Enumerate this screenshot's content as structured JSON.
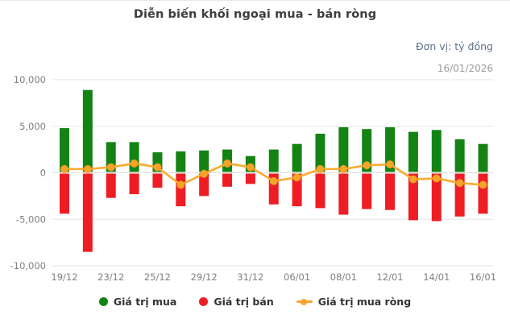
{
  "header": {
    "title": "Diễn biến khối ngoại mua - bán ròng",
    "unit_label": "Đơn vị: tỷ đồng",
    "date_label": "16/01/2026"
  },
  "legend": [
    {
      "label": "Giá trị mua",
      "color": "#148314",
      "marker": "circle"
    },
    {
      "label": "Giá trị bán",
      "color": "#ee1d23",
      "marker": "circle"
    },
    {
      "label": "Giá trị mua ròng",
      "color": "#f7a42b",
      "marker": "line-dot"
    }
  ],
  "colors": {
    "buy": "#148314",
    "sell": "#ee1d23",
    "net_line": "#f9ab2e",
    "net_dot_fill": "#f7a42b",
    "net_dot_stroke": "#ee9a1d",
    "grid": "#e6e6e6",
    "zero_line": "#dcdcdc",
    "axis_text": "#808080"
  },
  "chart_data": {
    "type": "bar",
    "title": "Diễn biến khối ngoại mua - bán ròng",
    "unit": "tỷ đồng",
    "as_of_date": "16/01/2026",
    "x_tick_labels": [
      "19/12",
      "23/12",
      "25/12",
      "29/12",
      "31/12",
      "06/01",
      "08/01",
      "12/01",
      "14/01",
      "16/01"
    ],
    "tick_every": 2,
    "n_points": 19,
    "series": [
      {
        "name": "Giá trị mua",
        "type": "bar",
        "values": [
          4800,
          8900,
          3300,
          3300,
          2200,
          2300,
          2400,
          2500,
          1800,
          2500,
          3100,
          4200,
          4900,
          4700,
          4900,
          4400,
          4600,
          3600,
          3100
        ]
      },
      {
        "name": "Giá trị bán",
        "type": "bar",
        "values": [
          -4400,
          -8500,
          -2700,
          -2300,
          -1600,
          -3600,
          -2500,
          -1500,
          -1200,
          -3400,
          -3600,
          -3800,
          -4500,
          -3900,
          -4000,
          -5100,
          -5200,
          -4700,
          -4400
        ]
      },
      {
        "name": "Giá trị mua ròng",
        "type": "line",
        "values": [
          400,
          400,
          600,
          1000,
          600,
          -1300,
          -100,
          1000,
          600,
          -900,
          -500,
          400,
          400,
          800,
          900,
          -700,
          -600,
          -1100,
          -1300
        ]
      }
    ],
    "ylim": [
      -10000,
      10000
    ],
    "y_ticks": [
      10000,
      5000,
      0,
      -5000,
      -10000
    ],
    "y_tick_labels": [
      "10,000",
      "5,000",
      "0",
      "-5,000",
      "-10,000"
    ],
    "grid": "horizontal",
    "legend_position": "bottom"
  }
}
